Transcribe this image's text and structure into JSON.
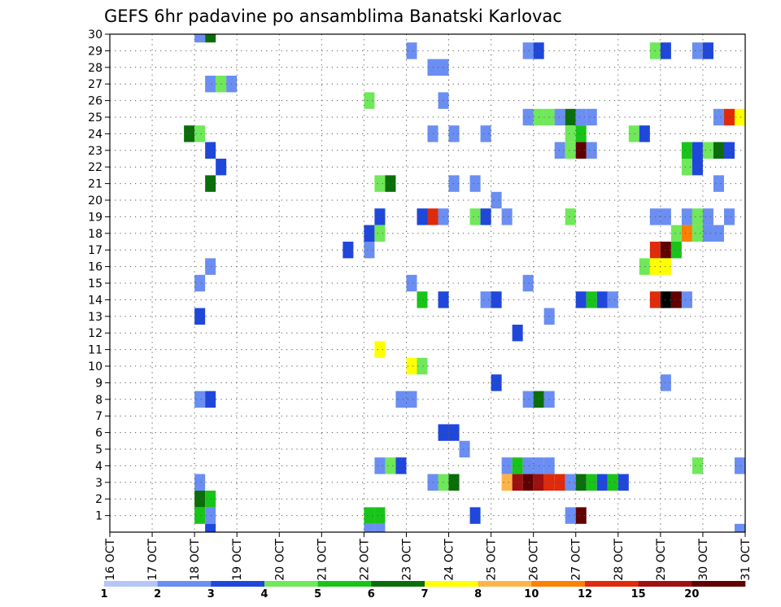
{
  "chart_data": {
    "type": "heatmap",
    "title": "GEFS 6hr padavine po ansamblima Banatski Karlovac",
    "x_ticks": [
      "16 OCT",
      "17 OCT",
      "18 OCT",
      "19 OCT",
      "20 OCT",
      "21 OCT",
      "22 OCT",
      "23 OCT",
      "24 OCT",
      "25 OCT",
      "26 OCT",
      "27 OCT",
      "28 OCT",
      "29 OCT",
      "30 OCT",
      "31 OCT"
    ],
    "y_ticks": [
      "1",
      "2",
      "3",
      "4",
      "5",
      "6",
      "7",
      "8",
      "9",
      "10",
      "11",
      "12",
      "13",
      "14",
      "15",
      "16",
      "17",
      "18",
      "19",
      "20",
      "21",
      "22",
      "23",
      "24",
      "25",
      "26",
      "27",
      "28",
      "29",
      "30"
    ],
    "ylim": [
      0,
      30
    ],
    "grid": true,
    "colorbar": {
      "labels": [
        "1",
        "2",
        "3",
        "4",
        "5",
        "6",
        "7",
        "8",
        "10",
        "12",
        "15",
        "20"
      ],
      "colors": [
        "#b3c6f7",
        "#6a8ef2",
        "#1f47db",
        "#6fe85a",
        "#19c419",
        "#0a6e0a",
        "#ffff00",
        "#ffb347",
        "#ff7f00",
        "#e02a0a",
        "#a01010",
        "#600000"
      ]
    },
    "cells": [
      [
        18.0,
        30,
        1
      ],
      [
        18.25,
        30,
        5
      ],
      [
        23.0,
        29,
        1
      ],
      [
        25.75,
        29,
        1
      ],
      [
        26.0,
        29,
        2
      ],
      [
        28.75,
        29,
        3
      ],
      [
        29.0,
        29,
        2
      ],
      [
        29.75,
        29,
        1
      ],
      [
        30.0,
        29,
        2
      ],
      [
        23.5,
        28,
        1
      ],
      [
        23.75,
        28,
        1
      ],
      [
        18.25,
        27,
        1
      ],
      [
        18.5,
        27,
        3
      ],
      [
        18.75,
        27,
        1
      ],
      [
        22.0,
        26,
        3
      ],
      [
        23.75,
        26,
        1
      ],
      [
        25.75,
        25,
        1
      ],
      [
        26.0,
        25,
        3
      ],
      [
        26.25,
        25,
        3
      ],
      [
        26.5,
        25,
        1
      ],
      [
        26.75,
        25,
        5
      ],
      [
        27.0,
        25,
        1
      ],
      [
        27.25,
        25,
        1
      ],
      [
        30.25,
        25,
        1
      ],
      [
        30.5,
        25,
        9
      ],
      [
        30.75,
        25,
        6
      ],
      [
        17.75,
        24,
        5
      ],
      [
        18.0,
        24,
        3
      ],
      [
        23.5,
        24,
        1
      ],
      [
        24.0,
        24,
        1
      ],
      [
        24.75,
        24,
        1
      ],
      [
        26.75,
        24,
        3
      ],
      [
        27.0,
        24,
        4
      ],
      [
        28.25,
        24,
        3
      ],
      [
        28.5,
        24,
        2
      ],
      [
        18.25,
        23,
        2
      ],
      [
        26.5,
        23,
        1
      ],
      [
        26.75,
        23,
        3
      ],
      [
        27.0,
        23,
        11
      ],
      [
        27.25,
        23,
        1
      ],
      [
        29.5,
        23,
        4
      ],
      [
        29.75,
        23,
        2
      ],
      [
        30.0,
        23,
        3
      ],
      [
        30.25,
        23,
        5
      ],
      [
        30.5,
        23,
        2
      ],
      [
        18.5,
        22,
        2
      ],
      [
        29.5,
        22,
        3
      ],
      [
        29.75,
        22,
        2
      ],
      [
        18.25,
        21,
        5
      ],
      [
        22.25,
        21,
        3
      ],
      [
        22.5,
        21,
        5
      ],
      [
        24.0,
        21,
        1
      ],
      [
        24.5,
        21,
        1
      ],
      [
        30.25,
        21,
        1
      ],
      [
        25.0,
        20,
        1
      ],
      [
        22.25,
        19,
        2
      ],
      [
        23.25,
        19,
        2
      ],
      [
        23.5,
        19,
        9
      ],
      [
        23.75,
        19,
        1
      ],
      [
        24.5,
        19,
        3
      ],
      [
        24.75,
        19,
        2
      ],
      [
        25.25,
        19,
        1
      ],
      [
        26.75,
        19,
        3
      ],
      [
        28.75,
        19,
        1
      ],
      [
        29.0,
        19,
        1
      ],
      [
        29.5,
        19,
        1
      ],
      [
        29.75,
        19,
        3
      ],
      [
        30.0,
        19,
        1
      ],
      [
        30.5,
        19,
        1
      ],
      [
        22.0,
        18,
        2
      ],
      [
        22.25,
        18,
        3
      ],
      [
        29.25,
        18,
        3
      ],
      [
        29.5,
        18,
        8
      ],
      [
        29.75,
        18,
        3
      ],
      [
        30.0,
        18,
        1
      ],
      [
        30.25,
        18,
        1
      ],
      [
        21.5,
        17,
        2
      ],
      [
        22.0,
        17,
        1
      ],
      [
        28.75,
        17,
        9
      ],
      [
        29.0,
        17,
        11
      ],
      [
        29.25,
        17,
        4
      ],
      [
        18.25,
        16,
        1
      ],
      [
        28.5,
        16,
        3
      ],
      [
        28.75,
        16,
        6
      ],
      [
        29.0,
        16,
        6
      ],
      [
        18.0,
        15,
        1
      ],
      [
        23.0,
        15,
        1
      ],
      [
        25.75,
        15,
        1
      ],
      [
        23.25,
        14,
        4
      ],
      [
        23.75,
        14,
        2
      ],
      [
        24.75,
        14,
        1
      ],
      [
        25.0,
        14,
        2
      ],
      [
        27.0,
        14,
        2
      ],
      [
        27.25,
        14,
        4
      ],
      [
        27.5,
        14,
        2
      ],
      [
        27.75,
        14,
        1
      ],
      [
        28.75,
        14,
        9
      ],
      [
        29.0,
        14,
        12
      ],
      [
        29.25,
        14,
        11
      ],
      [
        29.5,
        14,
        1
      ],
      [
        18.0,
        13,
        2
      ],
      [
        26.25,
        13,
        1
      ],
      [
        25.5,
        12,
        2
      ],
      [
        22.25,
        11,
        6
      ],
      [
        23.0,
        10,
        6
      ],
      [
        23.25,
        10,
        3
      ],
      [
        25.0,
        9,
        2
      ],
      [
        29.0,
        9,
        1
      ],
      [
        18.0,
        8,
        1
      ],
      [
        18.25,
        8,
        2
      ],
      [
        22.75,
        8,
        1
      ],
      [
        23.0,
        8,
        1
      ],
      [
        25.75,
        8,
        1
      ],
      [
        26.0,
        8,
        5
      ],
      [
        26.25,
        8,
        1
      ],
      [
        23.75,
        6,
        2
      ],
      [
        24.0,
        6,
        2
      ],
      [
        24.25,
        5,
        1
      ],
      [
        22.25,
        4,
        1
      ],
      [
        22.5,
        4,
        3
      ],
      [
        22.75,
        4,
        2
      ],
      [
        25.25,
        4,
        1
      ],
      [
        25.5,
        4,
        4
      ],
      [
        25.75,
        4,
        1
      ],
      [
        26.0,
        4,
        1
      ],
      [
        26.25,
        4,
        1
      ],
      [
        29.75,
        4,
        3
      ],
      [
        30.75,
        4,
        1
      ],
      [
        18.0,
        3,
        1
      ],
      [
        23.5,
        3,
        1
      ],
      [
        23.75,
        3,
        3
      ],
      [
        24.0,
        3,
        5
      ],
      [
        25.25,
        3,
        7
      ],
      [
        25.5,
        3,
        10
      ],
      [
        25.75,
        3,
        11
      ],
      [
        26.0,
        3,
        10
      ],
      [
        26.25,
        3,
        9
      ],
      [
        26.5,
        3,
        9
      ],
      [
        26.75,
        3,
        1
      ],
      [
        27.0,
        3,
        5
      ],
      [
        27.25,
        3,
        4
      ],
      [
        27.5,
        3,
        2
      ],
      [
        27.75,
        3,
        4
      ],
      [
        28.0,
        3,
        2
      ],
      [
        18.0,
        2,
        5
      ],
      [
        18.25,
        2,
        4
      ],
      [
        18.0,
        1,
        4
      ],
      [
        18.25,
        1,
        1
      ],
      [
        22.0,
        1,
        4
      ],
      [
        22.25,
        1,
        4
      ],
      [
        24.5,
        1,
        2
      ],
      [
        26.75,
        1,
        1
      ],
      [
        27.0,
        1,
        11
      ],
      [
        18.25,
        0,
        2
      ],
      [
        22.0,
        0,
        1
      ],
      [
        22.25,
        0,
        1
      ],
      [
        30.75,
        0,
        1
      ]
    ]
  }
}
